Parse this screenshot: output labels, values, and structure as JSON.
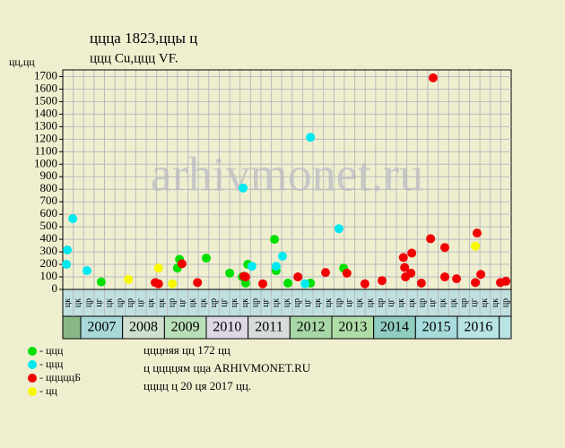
{
  "chart_data": {
    "type": "scatter",
    "title": "ццца 1823,ццы ц",
    "subtitle": "ццц Cu,ццц VF.",
    "ylabel": "цц,цц",
    "watermark": "arhivmonet.ru",
    "xlim": [
      2006.571,
      2017.286
    ],
    "ylim": [
      0,
      1750
    ],
    "yticks": [
      0,
      100,
      200,
      300,
      400,
      500,
      600,
      700,
      800,
      900,
      1000,
      1100,
      1200,
      1300,
      1400,
      1500,
      1600,
      1700
    ],
    "grid": true,
    "years": [
      {
        "label": "2007",
        "color": "#a8d8d8"
      },
      {
        "label": "2008",
        "color": "#d0e0d0"
      },
      {
        "label": "2009",
        "color": "#b8e0b8"
      },
      {
        "label": "2010",
        "color": "#ded8e6"
      },
      {
        "label": "2011",
        "color": "#d8dcd8"
      },
      {
        "label": "2012",
        "color": "#a8d8a8"
      },
      {
        "label": "2013",
        "color": "#b0dca8"
      },
      {
        "label": "2014",
        "color": "#90ccc0"
      },
      {
        "label": "2015",
        "color": "#a8dcdc"
      },
      {
        "label": "2016",
        "color": "#b8e4e4"
      }
    ],
    "column_labels": [
      "цк",
      "цк",
      "цр",
      "цг",
      "цк",
      "цр",
      "цр",
      "цг",
      "цк",
      "цк",
      "цр",
      "цг",
      "цк",
      "цк",
      "цр",
      "цг",
      "цк",
      "цк",
      "цр",
      "цг",
      "цк",
      "цк",
      "цр",
      "цг",
      "цк",
      "цк",
      "цр",
      "цг",
      "цк",
      "цк",
      "цр",
      "цг",
      "цк",
      "цк",
      "цр",
      "цг",
      "цк",
      "цк",
      "цр",
      "цг",
      "цк",
      "цк",
      "цр"
    ],
    "series": [
      {
        "name": "- ццц",
        "color": "#00e000",
        "x": [
          2007.49,
          2009.31,
          2009.36,
          2010.0,
          2010.56,
          2010.86,
          2010.94,
          2010.99,
          2011.63,
          2011.67,
          2011.95,
          2012.49,
          2013.28
        ],
        "values": [
          60,
          170,
          240,
          250,
          130,
          100,
          50,
          200,
          400,
          150,
          50,
          50,
          170
        ]
      },
      {
        "name": "- ццц",
        "color": "#00e8f0",
        "x": [
          2006.66,
          2006.68,
          2006.81,
          2007.15,
          2010.88,
          2011.09,
          2011.67,
          2011.82,
          2012.36,
          2012.49,
          2013.17
        ],
        "values": [
          200,
          315,
          565,
          150,
          810,
          185,
          185,
          265,
          45,
          1215,
          485
        ]
      },
      {
        "name": "- цццццБ",
        "color": "#f00000",
        "x": [
          2008.78,
          2008.86,
          2009.42,
          2009.79,
          2010.9,
          2010.94,
          2011.35,
          2012.19,
          2012.85,
          2013.36,
          2013.79,
          2014.2,
          2014.71,
          2014.74,
          2014.76,
          2014.89,
          2014.91,
          2015.14,
          2015.36,
          2015.42,
          2015.7,
          2015.7,
          2015.98,
          2016.43,
          2016.47,
          2016.56,
          2017.03,
          2017.16
        ],
        "values": [
          55,
          45,
          205,
          55,
          105,
          100,
          45,
          100,
          135,
          130,
          45,
          70,
          255,
          175,
          100,
          130,
          290,
          50,
          405,
          1690,
          335,
          100,
          85,
          55,
          450,
          120,
          55,
          65
        ]
      },
      {
        "name": "- цц",
        "color": "#f8f800",
        "x": [
          2008.14,
          2008.86,
          2009.19,
          2016.43
        ],
        "values": [
          80,
          170,
          45,
          345
        ]
      }
    ],
    "notes": [
      "цццняя цц 172 цц",
      "ц ццццям цца ARHIVMONET.RU",
      "цццц ц 20 ця 2017 цц."
    ]
  }
}
